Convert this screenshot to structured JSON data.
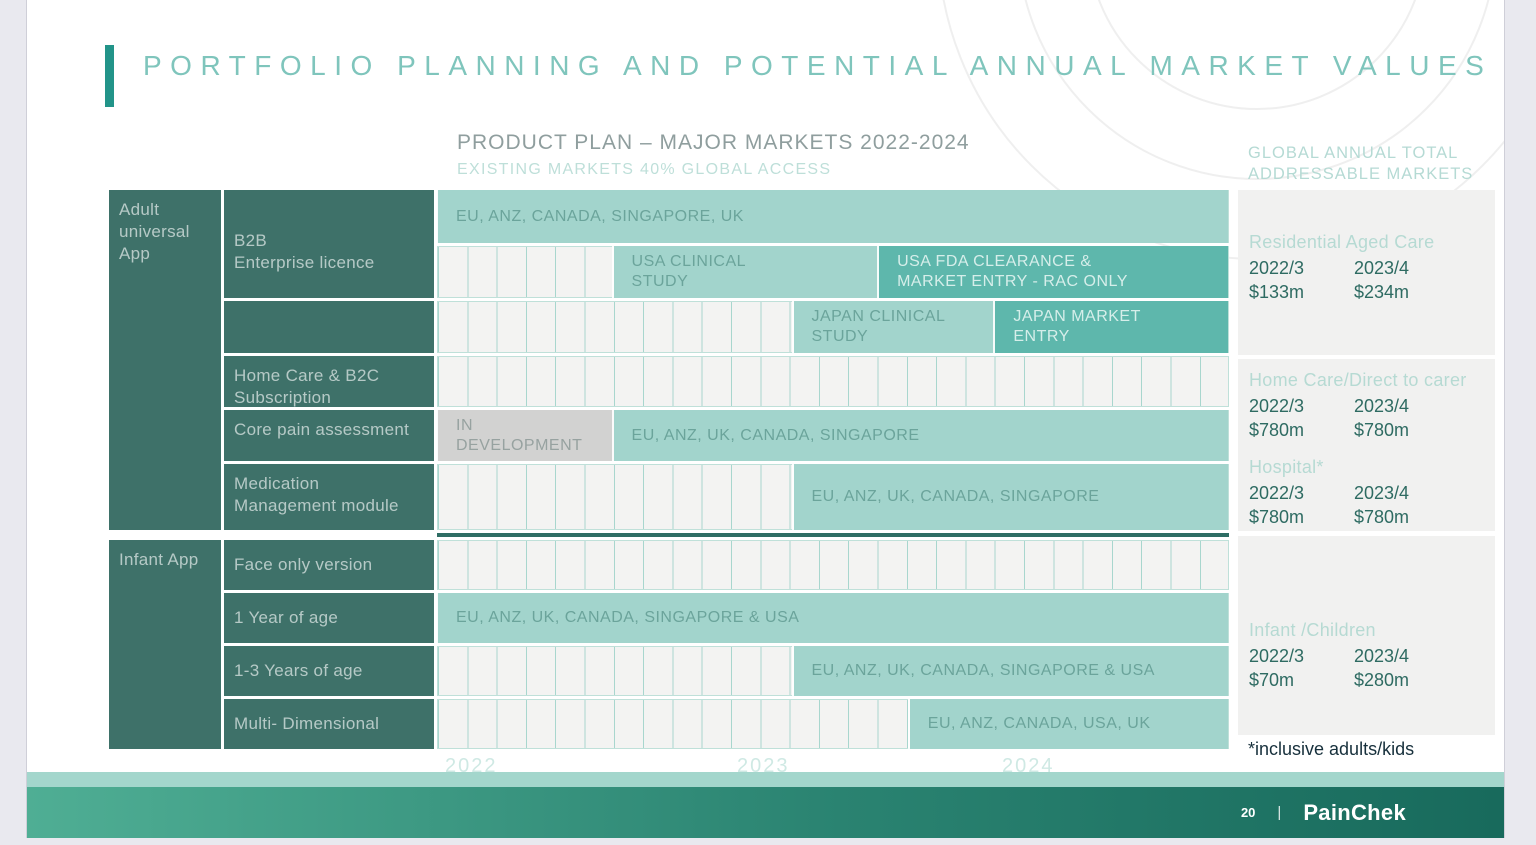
{
  "slide": {
    "title": "PORTFOLIO PLANNING AND POTENTIAL ANNUAL  MARKET VALUES",
    "subtitle": "PRODUCT PLAN – MAJOR MARKETS 2022-2024",
    "subtitle2": "EXISTING MARKETS 40% GLOBAL ACCESS",
    "right_header": "GLOBAL ANNUAL TOTAL ADDRESSABLE MARKETS"
  },
  "chart_data": {
    "type": "table",
    "title": "PRODUCT PLAN – MAJOR MARKETS 2022-2024",
    "subtitle": "EXISTING MARKETS 40% GLOBAL ACCESS",
    "x_axis": {
      "years": [
        "2022",
        "2023",
        "2024"
      ],
      "unit": "months",
      "range": [
        0,
        36
      ]
    },
    "groups": [
      {
        "label": "Adult universal App"
      },
      {
        "label": "Infant App"
      }
    ],
    "rows": [
      {
        "group": "Adult universal App",
        "label": "B2B\nEnterprise licence",
        "bars": [
          {
            "label": "EU, ANZ, CANADA, SINGAPORE, UK",
            "start": 0,
            "end": 36,
            "variant": "light"
          }
        ]
      },
      {
        "group": "Adult universal App",
        "label": "",
        "bars": [
          {
            "label": "USA CLINICAL\nSTUDY",
            "start": 8,
            "end": 20.1,
            "variant": "light"
          },
          {
            "label": "USA FDA CLEARANCE &\nMARKET ENTRY - RAC ONLY",
            "start": 20.1,
            "end": 36,
            "variant": "medium"
          }
        ]
      },
      {
        "group": "Adult universal App",
        "label": "",
        "bars": [
          {
            "label": "JAPAN CLINICAL\nSTUDY",
            "start": 16.2,
            "end": 25.4,
            "variant": "light"
          },
          {
            "label": "JAPAN MARKET\nENTRY",
            "start": 25.4,
            "end": 36,
            "variant": "medium"
          }
        ]
      },
      {
        "group": "Adult universal App",
        "label": "Home Care & B2C Subscription",
        "bars": []
      },
      {
        "group": "Adult universal App",
        "label": "Core pain assessment",
        "bars": [
          {
            "label": "IN\nDEVELOPMENT",
            "start": 0,
            "end": 8,
            "variant": "gray"
          },
          {
            "label": "EU, ANZ, UK, CANADA, SINGAPORE",
            "start": 8,
            "end": 36,
            "variant": "light"
          }
        ]
      },
      {
        "group": "Adult universal App",
        "label": "Medication Management module",
        "bars": [
          {
            "label": "EU, ANZ, UK, CANADA, SINGAPORE",
            "start": 16.2,
            "end": 36,
            "variant": "light"
          }
        ]
      },
      {
        "group": "Infant App",
        "label": "Face only version",
        "bars": []
      },
      {
        "group": "Infant App",
        "label": "1 Year of age",
        "bars": [
          {
            "label": "EU, ANZ, UK, CANADA, SINGAPORE & USA",
            "start": 0,
            "end": 36,
            "variant": "light"
          }
        ]
      },
      {
        "group": "Infant App",
        "label": "1-3 Years of age",
        "bars": [
          {
            "label": "EU, ANZ, UK, CANADA, SINGAPORE & USA",
            "start": 16.2,
            "end": 36,
            "variant": "light"
          }
        ]
      },
      {
        "group": "Infant App",
        "label": "Multi- Dimensional",
        "bars": [
          {
            "label": "EU, ANZ, CANADA, USA, UK",
            "start": 21.5,
            "end": 36,
            "variant": "light"
          }
        ]
      }
    ]
  },
  "markets": [
    {
      "name": "Residential Aged Care",
      "cols": [
        "2022/3",
        "2023/4"
      ],
      "values": [
        "$133m",
        "$234m"
      ]
    },
    {
      "name": "Home Care/Direct to carer",
      "cols": [
        "2022/3",
        "2023/4"
      ],
      "values": [
        "$780m",
        "$780m"
      ]
    },
    {
      "name": "Hospital*",
      "cols": [
        "2022/3",
        "2023/4"
      ],
      "values": [
        "$780m",
        "$780m"
      ]
    },
    {
      "name": "Infant /Children",
      "cols": [
        "2022/3",
        "2023/4"
      ],
      "values": [
        "$70m",
        "$280m"
      ]
    }
  ],
  "footnote": {
    "text": "*inclusive adults/kids"
  },
  "footer": {
    "page": "20",
    "sep": "|",
    "brand": "PainChek"
  },
  "colors": {
    "accent": "#229489",
    "dark_label": "#3e7169",
    "bar_light": "#a2d4cc",
    "bar_medium": "#5eb7ac",
    "bar_gray": "#d2d2d1",
    "footer_gradient_left": "#4fae94",
    "footer_gradient_right": "#186a5c",
    "money_text": "#2e6b62"
  }
}
